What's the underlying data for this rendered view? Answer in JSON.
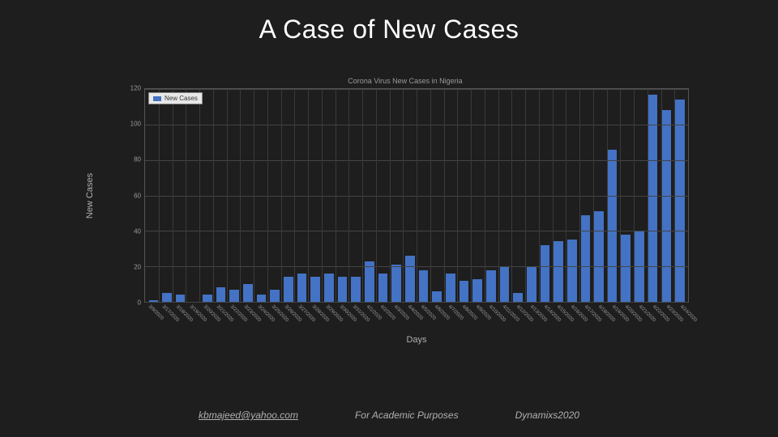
{
  "slide": {
    "title": "A Case of New Cases",
    "background_color": "#1e1e1e",
    "title_color": "#ffffff",
    "title_fontsize": 32
  },
  "chart": {
    "type": "bar",
    "title": "Corona Virus New Cases in Nigeria",
    "title_fontsize": 9,
    "title_color": "#9a9a9a",
    "xlabel": "Days",
    "ylabel": "New Cases",
    "label_fontsize": 11,
    "label_color": "#b0b0b0",
    "ylim": [
      0,
      120
    ],
    "ytick_step": 20,
    "yticks": [
      0,
      20,
      40,
      60,
      80,
      100,
      120
    ],
    "bar_color": "#4472c4",
    "bar_width": 0.7,
    "grid_color": "#444444",
    "vgrid_color": "#3a3a3a",
    "plot_border_color": "#555555",
    "tick_color": "#9a9a9a",
    "tick_fontsize": 8,
    "xtick_fontsize": 6,
    "xtick_rotation": 45,
    "legend": {
      "label": "New Cases",
      "position": "upper left",
      "bg": "#e8e8e8",
      "border": "#888888",
      "text_color": "#333333",
      "swatch_color": "#4472c4"
    },
    "categories": [
      "3/9/2020",
      "3/17/2020",
      "3/18/2020",
      "3/19/2020",
      "3/20/2020",
      "3/21/2020",
      "3/22/2020",
      "3/23/2020",
      "3/24/2020",
      "3/25/2020",
      "3/26/2020",
      "3/27/2020",
      "3/28/2020",
      "3/29/2020",
      "3/30/2020",
      "3/31/2020",
      "4/1/2020",
      "4/2/2020",
      "4/3/2020",
      "4/4/2020",
      "4/5/2020",
      "4/6/2020",
      "4/7/2020",
      "4/8/2020",
      "4/9/2020",
      "4/10/2020",
      "4/11/2020",
      "4/12/2020",
      "4/13/2020",
      "4/14/2020",
      "4/15/2020",
      "4/16/2020",
      "4/17/2020",
      "4/18/2020",
      "4/19/2020",
      "4/20/2020",
      "4/21/2020",
      "4/22/2020",
      "4/23/2020",
      "4/24/2020"
    ],
    "values": [
      1,
      5,
      4,
      0,
      4,
      8,
      7,
      10,
      4,
      7,
      14,
      16,
      14,
      16,
      14,
      14,
      23,
      16,
      21,
      26,
      18,
      6,
      16,
      12,
      13,
      18,
      20,
      5,
      20,
      32,
      34,
      35,
      49,
      51,
      86,
      38,
      40,
      117,
      108,
      114
    ]
  },
  "footer": {
    "email": "kbmajeed@yahoo.com",
    "purpose": "For Academic Purposes",
    "credit": "Dynamixs2020",
    "color": "#b0b0b0",
    "fontsize": 12
  }
}
